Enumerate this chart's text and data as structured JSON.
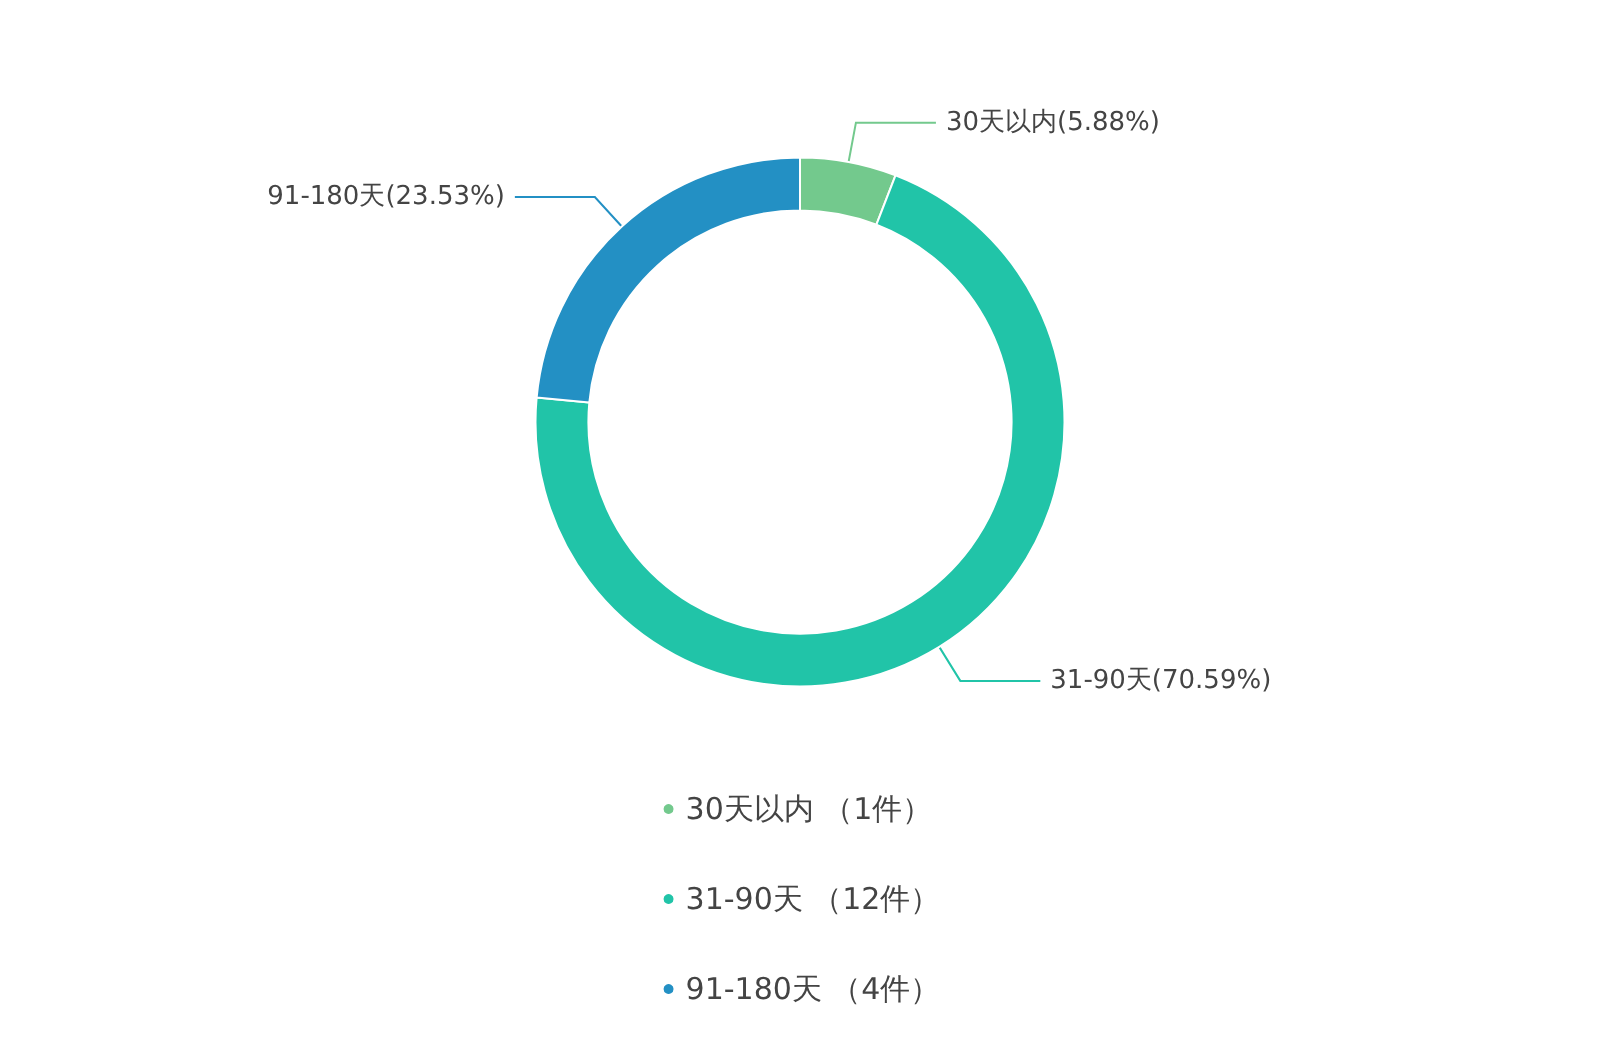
{
  "chart_data": {
    "type": "donut",
    "categories": [
      "30天以内 （1件）",
      "31-90天 （12件）",
      "91-180天 （4件）"
    ],
    "values": [
      5.88,
      70.59,
      23.53
    ],
    "colors": [
      "#73c98d",
      "#21c4a8",
      "#2390c4"
    ],
    "value_labels": [
      "30天以内(5.88%)",
      "31-90天(70.59%)",
      "91-180天(23.53%)"
    ],
    "legend": "bottom"
  }
}
